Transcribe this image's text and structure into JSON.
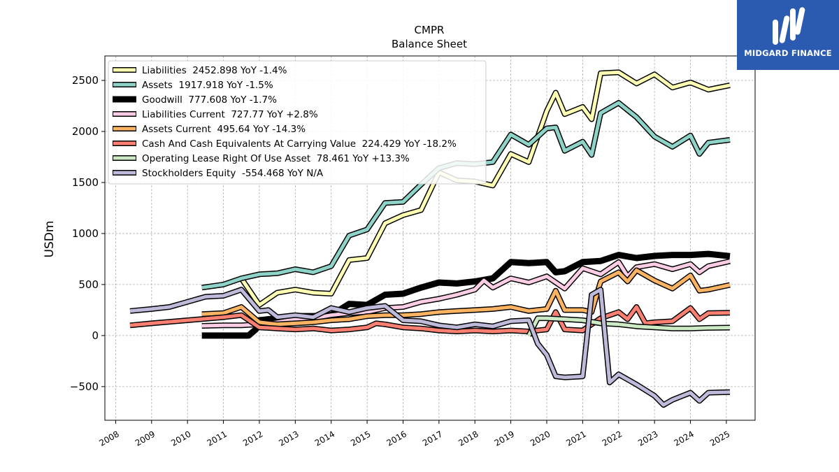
{
  "brand": {
    "name": "MIDGARD FINANCE",
    "color": "#2b5bb0"
  },
  "chart_data": {
    "type": "line",
    "title": "CMPR",
    "subtitle": "Balance  Sheet",
    "xlabel": "",
    "ylabel": "USDm",
    "xlim": [
      2007.7,
      2025.8
    ],
    "ylim": [
      -830,
      2740
    ],
    "x_ticks": [
      2008,
      2009,
      2010,
      2011,
      2012,
      2013,
      2014,
      2015,
      2016,
      2017,
      2018,
      2019,
      2020,
      2021,
      2022,
      2023,
      2024,
      2025
    ],
    "y_ticks": [
      -500,
      0,
      500,
      1000,
      1500,
      2000,
      2500
    ],
    "y_tick_labels": [
      "−500",
      "0",
      "500",
      "1000",
      "1500",
      "2000",
      "2500"
    ],
    "grid": true,
    "legend_position": "top-left",
    "series": [
      {
        "name": "Liabilities",
        "legend": "Liabilities  2452.898 YoY -1.4%",
        "color": "#ffffb3",
        "x": [
          2011.5,
          2012.0,
          2012.5,
          2013.0,
          2013.5,
          2014.0,
          2014.5,
          2015.0,
          2015.5,
          2016.0,
          2016.5,
          2017.0,
          2017.5,
          2018.0,
          2018.5,
          2019.0,
          2019.5,
          2020.0,
          2020.25,
          2020.5,
          2021.0,
          2021.25,
          2021.5,
          2022.0,
          2022.5,
          2023.0,
          2023.5,
          2024.0,
          2024.5,
          2025.1
        ],
        "y": [
          560,
          300,
          420,
          450,
          420,
          410,
          740,
          760,
          1100,
          1180,
          1230,
          1600,
          1520,
          1510,
          1470,
          1780,
          1700,
          2200,
          2380,
          2170,
          2240,
          2120,
          2570,
          2580,
          2470,
          2560,
          2430,
          2480,
          2410,
          2453
        ]
      },
      {
        "name": "Assets",
        "legend": "Assets  1917.918 YoY -1.5%",
        "color": "#8dd3c7",
        "x": [
          2010.4,
          2011.0,
          2011.5,
          2012.0,
          2012.5,
          2013.0,
          2013.5,
          2014.0,
          2014.5,
          2015.0,
          2015.5,
          2016.0,
          2016.5,
          2017.0,
          2017.5,
          2018.0,
          2018.5,
          2019.0,
          2019.5,
          2020.0,
          2020.25,
          2020.5,
          2021.0,
          2021.25,
          2021.5,
          2022.0,
          2022.5,
          2023.0,
          2023.5,
          2024.0,
          2024.25,
          2024.5,
          2025.1
        ],
        "y": [
          470,
          500,
          560,
          600,
          610,
          650,
          620,
          680,
          980,
          1040,
          1300,
          1310,
          1480,
          1640,
          1690,
          1680,
          1700,
          1970,
          1870,
          2030,
          2040,
          1810,
          1900,
          1770,
          2180,
          2280,
          2140,
          1950,
          1850,
          1960,
          1780,
          1890,
          1918
        ]
      },
      {
        "name": "Goodwill",
        "legend": "Goodwill  777.608 YoY -1.7%",
        "color": "#000000",
        "x": [
          2010.4,
          2011.0,
          2011.7,
          2011.9,
          2012.0,
          2012.5,
          2013.0,
          2013.5,
          2014.0,
          2014.5,
          2015.0,
          2015.5,
          2016.0,
          2016.5,
          2017.0,
          2017.5,
          2018.0,
          2018.5,
          2019.0,
          2019.5,
          2020.0,
          2020.25,
          2020.5,
          2021.0,
          2021.5,
          2022.0,
          2022.5,
          2023.0,
          2023.5,
          2024.0,
          2024.5,
          2025.1
        ],
        "y": [
          0,
          0,
          0,
          60,
          150,
          170,
          190,
          190,
          200,
          310,
          300,
          400,
          410,
          470,
          520,
          510,
          530,
          560,
          720,
          710,
          720,
          620,
          630,
          720,
          730,
          790,
          760,
          780,
          790,
          790,
          800,
          778
        ]
      },
      {
        "name": "Liabilities Current",
        "legend": "Liabilities Current  727.77 YoY +2.8%",
        "color": "#fccde5",
        "x": [
          2010.4,
          2011.0,
          2011.5,
          2012.0,
          2012.5,
          2013.0,
          2013.5,
          2014.0,
          2014.5,
          2015.0,
          2015.5,
          2016.0,
          2016.5,
          2017.0,
          2017.5,
          2018.0,
          2018.25,
          2018.5,
          2019.0,
          2019.5,
          2020.0,
          2020.5,
          2021.0,
          2021.5,
          2022.0,
          2022.25,
          2022.5,
          2023.0,
          2023.5,
          2024.0,
          2024.25,
          2024.5,
          2025.1
        ],
        "y": [
          95,
          100,
          100,
          110,
          130,
          160,
          170,
          200,
          220,
          230,
          270,
          280,
          330,
          360,
          400,
          450,
          540,
          470,
          560,
          520,
          580,
          460,
          660,
          600,
          720,
          580,
          670,
          700,
          650,
          700,
          620,
          680,
          728
        ]
      },
      {
        "name": "Assets Current",
        "legend": "Assets Current  495.64 YoY -14.3%",
        "color": "#fdb462",
        "x": [
          2010.4,
          2011.0,
          2011.5,
          2012.0,
          2012.5,
          2013.0,
          2013.5,
          2014.0,
          2014.5,
          2015.0,
          2015.5,
          2016.0,
          2016.5,
          2017.0,
          2017.5,
          2018.0,
          2018.5,
          2019.0,
          2019.5,
          2020.0,
          2020.25,
          2020.5,
          2021.0,
          2021.25,
          2021.5,
          2022.0,
          2022.25,
          2022.5,
          2023.0,
          2023.5,
          2024.0,
          2024.25,
          2024.5,
          2025.1
        ],
        "y": [
          210,
          220,
          280,
          130,
          110,
          120,
          130,
          150,
          160,
          190,
          200,
          200,
          210,
          230,
          240,
          250,
          260,
          280,
          240,
          260,
          440,
          250,
          250,
          230,
          530,
          620,
          530,
          640,
          540,
          460,
          590,
          440,
          450,
          496
        ]
      },
      {
        "name": "Cash And Cash Equivalents At Carrying Value",
        "legend": "Cash And Cash Equivalents At Carrying Value  224.429 YoY -18.2%",
        "color": "#fb8072",
        "x": [
          2008.4,
          2009.0,
          2010.0,
          2011.0,
          2011.5,
          2012.0,
          2012.5,
          2013.0,
          2013.5,
          2014.0,
          2014.5,
          2015.0,
          2015.25,
          2015.5,
          2016.0,
          2016.5,
          2017.0,
          2017.5,
          2018.0,
          2018.5,
          2019.0,
          2019.5,
          2020.0,
          2020.25,
          2020.5,
          2021.0,
          2021.5,
          2022.0,
          2022.25,
          2022.5,
          2022.75,
          2023.0,
          2023.5,
          2024.0,
          2024.25,
          2024.5,
          2025.1
        ],
        "y": [
          100,
          120,
          150,
          180,
          200,
          80,
          70,
          60,
          70,
          50,
          60,
          80,
          120,
          110,
          80,
          70,
          50,
          40,
          50,
          40,
          50,
          40,
          60,
          230,
          60,
          50,
          170,
          230,
          160,
          280,
          120,
          130,
          140,
          270,
          160,
          220,
          224
        ]
      },
      {
        "name": "Operating Lease Right Of Use Asset",
        "legend": "Operating Lease Right Of Use Asset  78.461 YoY +13.3%",
        "color": "#ccebc5",
        "x": [
          2019.5,
          2019.75,
          2020.0,
          2020.5,
          2021.0,
          2021.5,
          2022.0,
          2022.5,
          2023.0,
          2023.5,
          2024.0,
          2024.5,
          2025.1
        ],
        "y": [
          0,
          170,
          170,
          160,
          150,
          120,
          110,
          90,
          80,
          70,
          70,
          75,
          78
        ]
      },
      {
        "name": "Stockholders Equity",
        "legend": "Stockholders Equity  -554.468 YoY N/A",
        "color": "#bebada",
        "x": [
          2008.4,
          2009.0,
          2009.5,
          2010.0,
          2010.5,
          2011.0,
          2011.5,
          2012.0,
          2012.25,
          2012.5,
          2013.0,
          2013.5,
          2014.0,
          2014.5,
          2015.0,
          2015.5,
          2016.0,
          2016.5,
          2017.0,
          2017.5,
          2018.0,
          2018.5,
          2019.0,
          2019.5,
          2019.75,
          2020.0,
          2020.25,
          2020.5,
          2021.0,
          2021.25,
          2021.5,
          2021.75,
          2022.0,
          2022.5,
          2023.0,
          2023.25,
          2023.5,
          2024.0,
          2024.25,
          2024.5,
          2025.1
        ],
        "y": [
          240,
          260,
          280,
          330,
          380,
          390,
          450,
          240,
          250,
          180,
          200,
          180,
          270,
          230,
          270,
          290,
          150,
          140,
          100,
          80,
          110,
          90,
          140,
          150,
          -80,
          -190,
          -400,
          -410,
          -400,
          400,
          450,
          -460,
          -380,
          -480,
          -590,
          -680,
          -630,
          -560,
          -640,
          -560,
          -554
        ]
      }
    ]
  }
}
